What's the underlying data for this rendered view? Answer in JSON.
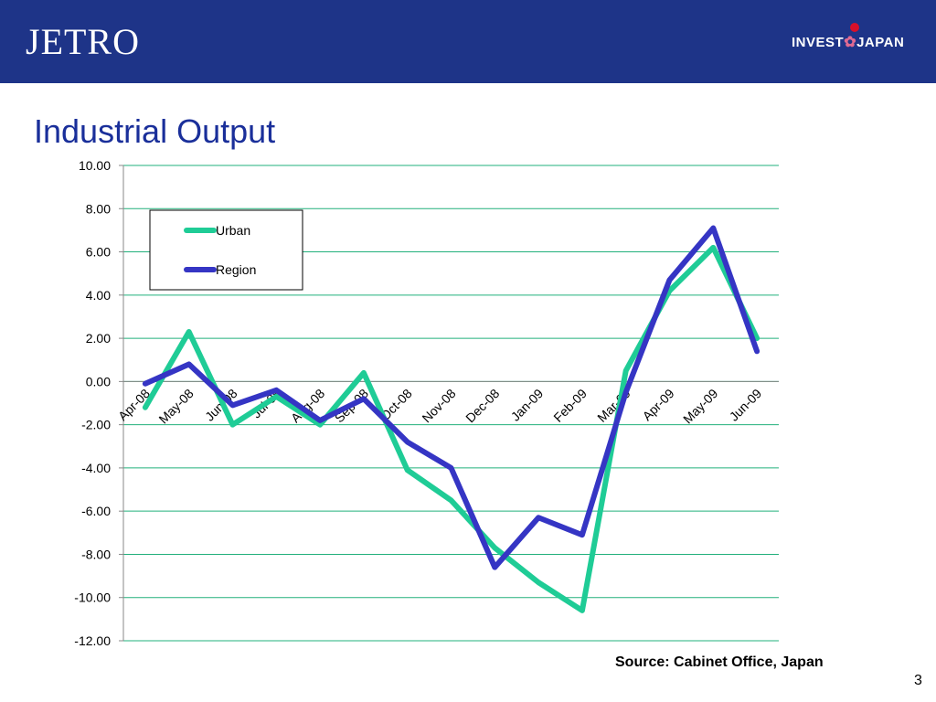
{
  "header": {
    "logo_left": "JETRO",
    "logo_right_a": "INVEST",
    "logo_right_mark": "✿",
    "logo_right_b": "JAPAN",
    "colors": {
      "bar": "#1e3488",
      "title": "#1a2f9a"
    }
  },
  "slide": {
    "title": "Industrial Output",
    "source": "Source: Cabinet Office, Japan",
    "page_number": "3"
  },
  "chart_data": {
    "type": "line",
    "categories": [
      "Apr-08",
      "May-08",
      "Jun-08",
      "Jul-08",
      "Aug-08",
      "Sep-08",
      "Oct-08",
      "Nov-08",
      "Dec-08",
      "Jan-09",
      "Feb-09",
      "Mar-09",
      "Apr-09",
      "May-09",
      "Jun-09"
    ],
    "series": [
      {
        "name": "Urban",
        "color": "#1fcc96",
        "values": [
          -1.2,
          2.3,
          -2.0,
          -0.7,
          -2.0,
          0.4,
          -4.1,
          -5.5,
          -7.7,
          -9.3,
          -10.6,
          0.5,
          4.2,
          6.2,
          2.0
        ]
      },
      {
        "name": "Region",
        "color": "#3535c4",
        "values": [
          -0.1,
          0.8,
          -1.1,
          -0.4,
          -1.8,
          -0.8,
          -2.8,
          -4.0,
          -8.6,
          -6.3,
          -7.1,
          -0.5,
          4.7,
          7.1,
          1.4
        ]
      }
    ],
    "ylim": [
      -12,
      10
    ],
    "yticks": [
      "10.00",
      "8.00",
      "6.00",
      "4.00",
      "2.00",
      "0.00",
      "-2.00",
      "-4.00",
      "-6.00",
      "-8.00",
      "-10.00",
      "-12.00"
    ],
    "xlabel": "",
    "ylabel": "",
    "grid": true,
    "gridline_color": "#22b07c",
    "legend_position": "top-left"
  }
}
